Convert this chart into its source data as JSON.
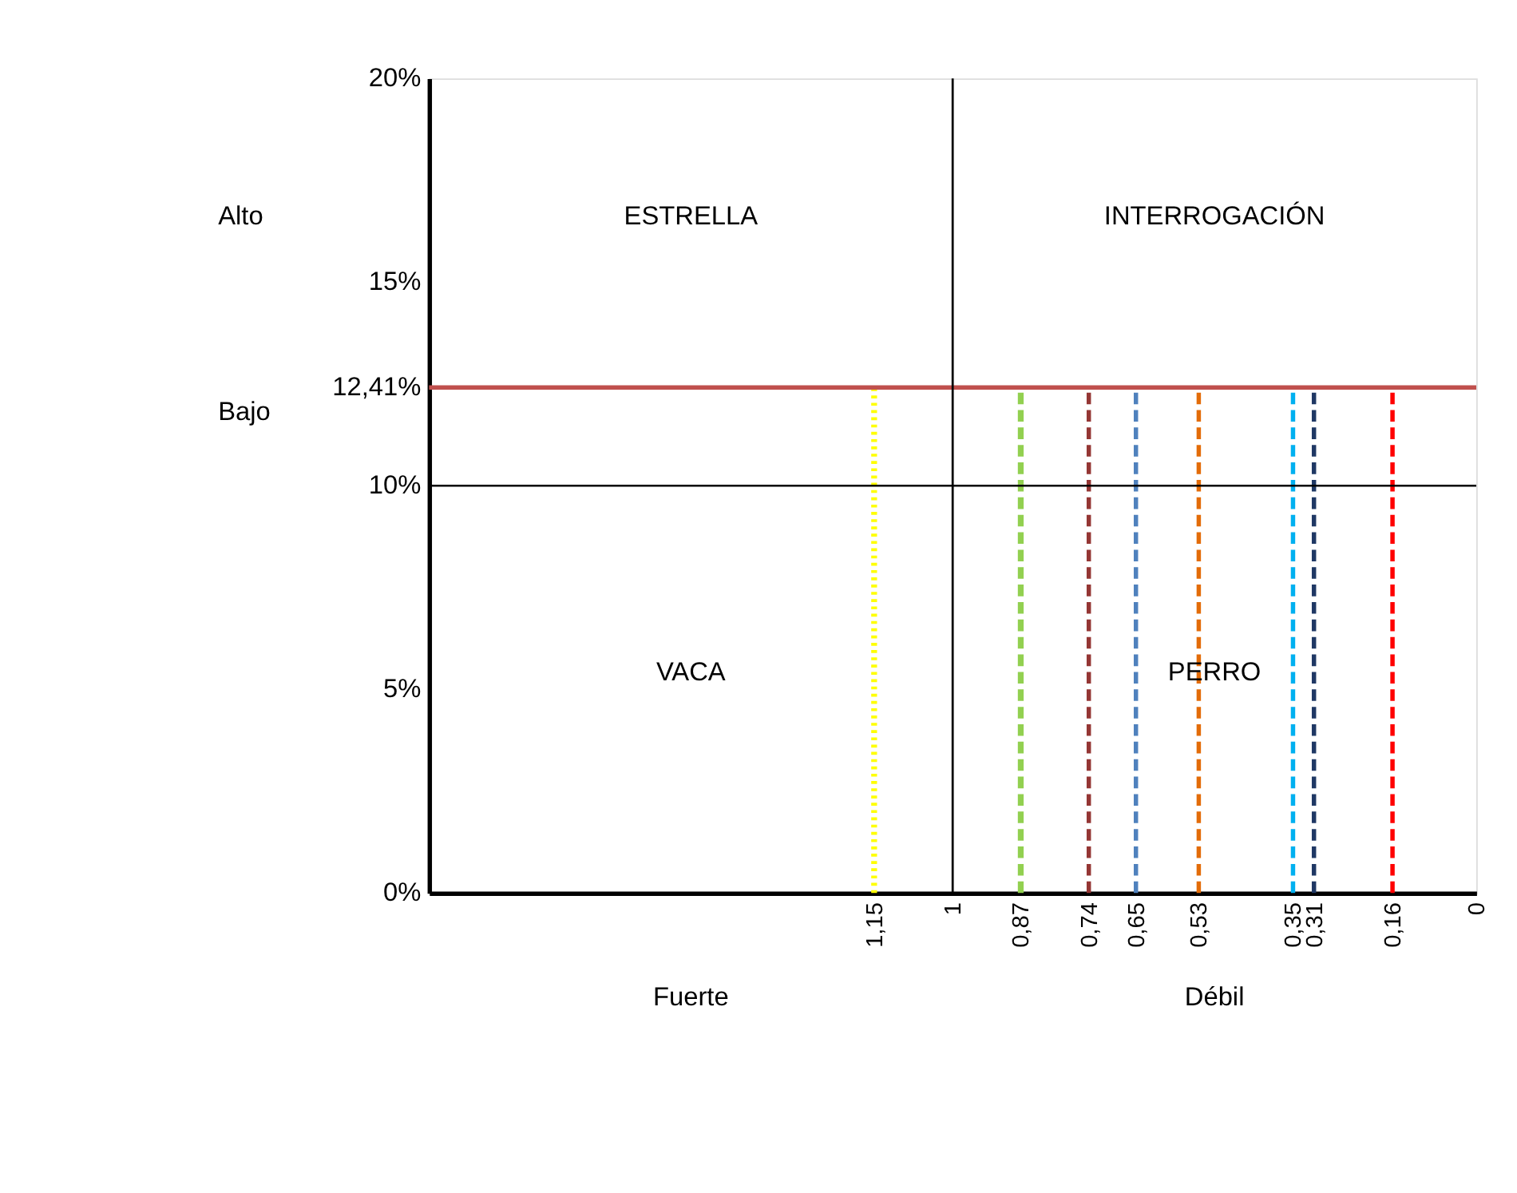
{
  "chart_data": {
    "type": "line",
    "xlim": [
      2,
      0
    ],
    "ylim": [
      0,
      20
    ],
    "xticks": [
      {
        "value": 1.15,
        "label": "1,15"
      },
      1,
      {
        "value": 0.87,
        "label": "0,87"
      },
      {
        "value": 0.74,
        "label": "0,74"
      },
      {
        "value": 0.65,
        "label": "0,65"
      },
      {
        "value": 0.53,
        "label": "0,53"
      },
      {
        "value": 0.35,
        "label": "0,35"
      },
      {
        "value": 0.31,
        "label": "0,31"
      },
      {
        "value": 0.16,
        "label": "0,16"
      },
      0
    ],
    "yticks": [
      {
        "value": 0,
        "label": "0%"
      },
      {
        "value": 5,
        "label": "5%"
      },
      {
        "value": 10,
        "label": "10%"
      },
      {
        "value": 12.41,
        "label": "12,41%"
      },
      {
        "value": 15,
        "label": "15%"
      },
      {
        "value": 20,
        "label": "20%"
      }
    ],
    "grid": false,
    "marker": "none",
    "series": [
      {
        "color": "#ffff00",
        "line_style": "dotted",
        "x": [
          1.15,
          1.15
        ],
        "values": [
          0,
          12.41
        ]
      },
      {
        "color": "#92d050",
        "line_style": "dashed",
        "x": [
          0.87,
          0.87
        ],
        "values": [
          0,
          12.41
        ]
      },
      {
        "color": "#943634",
        "line_style": "dashed",
        "x": [
          0.74,
          0.74
        ],
        "values": [
          0,
          12.41
        ]
      },
      {
        "color": "#4f81bd",
        "line_style": "dashed",
        "x": [
          0.65,
          0.65
        ],
        "values": [
          0,
          12.41
        ]
      },
      {
        "color": "#e36c09",
        "line_style": "dashed",
        "x": [
          0.53,
          0.53
        ],
        "values": [
          0,
          12.41
        ]
      },
      {
        "color": "#00b0f0",
        "line_style": "dashed",
        "x": [
          0.35,
          0.35
        ],
        "values": [
          0,
          12.41
        ]
      },
      {
        "color": "#1f3864",
        "line_style": "dashed",
        "x": [
          0.31,
          0.31
        ],
        "values": [
          0,
          12.41
        ]
      },
      {
        "color": "#ff0000",
        "line_style": "dashed",
        "x": [
          0.16,
          0.16
        ],
        "values": [
          0,
          12.41
        ]
      }
    ],
    "ref_lines": [
      {
        "axis": "y",
        "value": 12.41,
        "color": "#c0504d",
        "line_style": "solid"
      },
      {
        "axis": "x",
        "value": 1,
        "color": "#000000",
        "line_style": "solid"
      },
      {
        "axis": "y",
        "value": 10,
        "color": "#000000",
        "line_style": "solid"
      }
    ],
    "annotations": [
      "ESTRELLA",
      "INTERROGACIÓN",
      "VACA",
      "PERRO",
      "Alto",
      "Bajo",
      "Fuerte",
      "Débil"
    ]
  }
}
